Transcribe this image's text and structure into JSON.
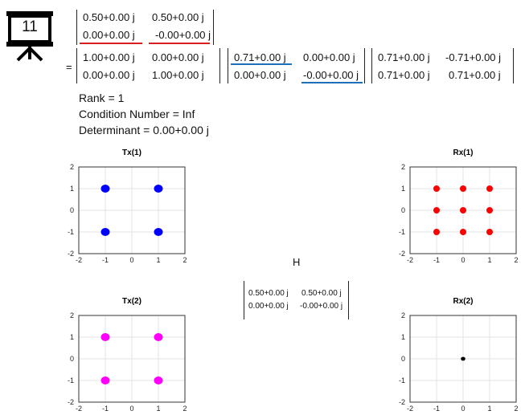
{
  "slide_badge": {
    "number": "11",
    "icon": "presentation-board-icon"
  },
  "equation": {
    "equals": "=",
    "top_matrix": [
      [
        "0.50+0.00 j",
        "0.50+0.00 j"
      ],
      [
        "0.00+0.00 j",
        "-0.00+0.00 j"
      ]
    ],
    "u_matrix": [
      [
        "1.00+0.00 j",
        "0.00+0.00 j"
      ],
      [
        "0.00+0.00 j",
        "1.00+0.00 j"
      ]
    ],
    "s_matrix": [
      [
        "0.71+0.00 j",
        "0.00+0.00 j"
      ],
      [
        "0.00+0.00 j",
        "-0.00+0.00 j"
      ]
    ],
    "v_matrix": [
      [
        "0.71+0.00 j",
        "-0.71+0.00 j"
      ],
      [
        "0.71+0.00 j",
        "0.71+0.00 j"
      ]
    ],
    "underline_colors": {
      "red": "#d62020",
      "blue": "#1f6fb8"
    }
  },
  "stats": {
    "rank": "Rank = 1",
    "condition": "Condition Number = Inf",
    "determinant": "Determinant = 0.00+0.00 j"
  },
  "channel": {
    "label": "H",
    "matrix": [
      [
        "0.50+0.00 j",
        "0.50+0.00 j"
      ],
      [
        "0.00+0.00 j",
        "-0.00+0.00 j"
      ]
    ]
  },
  "chart_data": [
    {
      "type": "scatter",
      "title": "Tx(1)",
      "color": "#0000ff",
      "xlim": [
        -2,
        2
      ],
      "ylim": [
        -2,
        2
      ],
      "ticks": [
        -2,
        -1,
        0,
        1,
        2
      ],
      "points": [
        [
          -1,
          1
        ],
        [
          1,
          1
        ],
        [
          -1,
          -1
        ],
        [
          1,
          -1
        ]
      ]
    },
    {
      "type": "scatter",
      "title": "Rx(1)",
      "color": "#ff0000",
      "xlim": [
        -2,
        2
      ],
      "ylim": [
        -2,
        2
      ],
      "ticks": [
        -2,
        -1,
        0,
        1,
        2
      ],
      "points": [
        [
          -1,
          1
        ],
        [
          0,
          1
        ],
        [
          1,
          1
        ],
        [
          -1,
          0
        ],
        [
          0,
          0
        ],
        [
          1,
          0
        ],
        [
          -1,
          -1
        ],
        [
          0,
          -1
        ],
        [
          1,
          -1
        ]
      ]
    },
    {
      "type": "scatter",
      "title": "Tx(2)",
      "color": "#ff00ff",
      "xlim": [
        -2,
        2
      ],
      "ylim": [
        -2,
        2
      ],
      "ticks": [
        -2,
        -1,
        0,
        1,
        2
      ],
      "points": [
        [
          -1,
          1
        ],
        [
          1,
          1
        ],
        [
          -1,
          -1
        ],
        [
          1,
          -1
        ]
      ]
    },
    {
      "type": "scatter",
      "title": "Rx(2)",
      "color": "#000000",
      "xlim": [
        -2,
        2
      ],
      "ylim": [
        -2,
        2
      ],
      "ticks": [
        -2,
        -1,
        0,
        1,
        2
      ],
      "points": [
        [
          0,
          0
        ]
      ]
    }
  ]
}
